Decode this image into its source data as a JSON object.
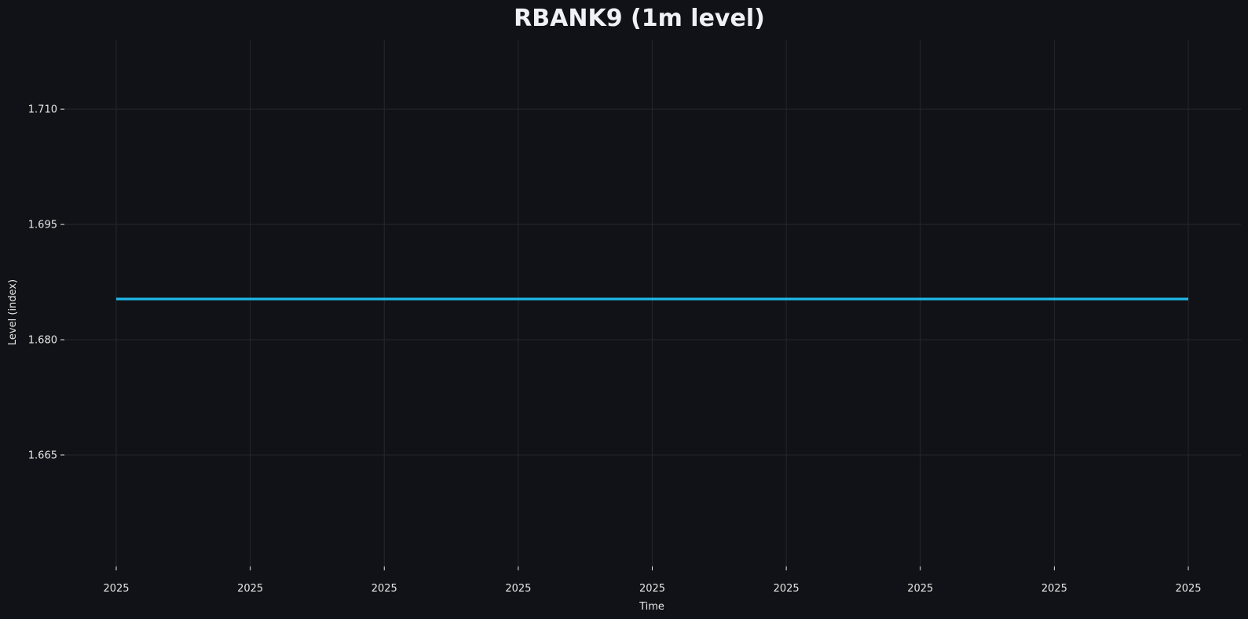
{
  "chart_data": {
    "type": "line",
    "title": "RBANK9 (1m level)",
    "xlabel": "Time",
    "ylabel": "Level (index)",
    "x_tick_labels": [
      "2025",
      "2025",
      "2025",
      "2025",
      "2025",
      "2025",
      "2025",
      "2025",
      "2025"
    ],
    "y_ticks": [
      1.665,
      1.68,
      1.695,
      1.71
    ],
    "y_tick_labels": [
      "1.665",
      "1.680",
      "1.695",
      "1.710"
    ],
    "ylim": [
      1.6505,
      1.719
    ],
    "grid": true,
    "series": [
      {
        "color": "#1fb8e8",
        "x_index": [
          0,
          8
        ],
        "values": [
          1.6853,
          1.6853
        ]
      }
    ],
    "colors": {
      "background": "#111217",
      "grid": "#25272d",
      "text": "#e6e6e6",
      "title": "#eef1f6"
    }
  }
}
